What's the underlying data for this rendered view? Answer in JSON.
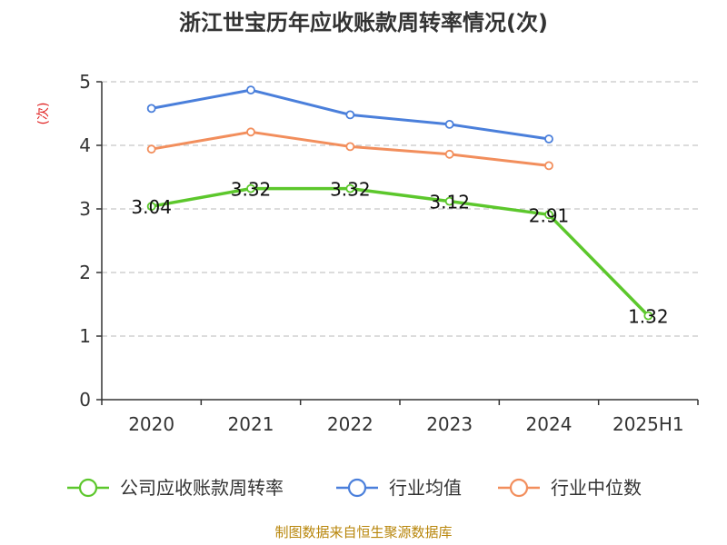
{
  "chart_data": {
    "type": "line",
    "title": "浙江世宝历年应收账款周转率情况(次)",
    "ylabel": "(次)",
    "xlabel": "",
    "categories": [
      "2020",
      "2021",
      "2022",
      "2023",
      "2024",
      "2025H1"
    ],
    "ylim": [
      0,
      5
    ],
    "yticks": [
      0,
      1,
      2,
      3,
      4,
      5
    ],
    "grid": "horizontal-dashed",
    "legend_position": "bottom",
    "series": [
      {
        "name": "公司应收账款周转率",
        "color": "#5cc72c",
        "values": [
          3.04,
          3.32,
          3.32,
          3.12,
          2.91,
          1.32
        ],
        "labels": [
          "3.04",
          "3.32",
          "3.32",
          "3.12",
          "2.91",
          "1.32"
        ],
        "show_labels": true
      },
      {
        "name": "行业均值",
        "color": "#4a7fdb",
        "values": [
          4.58,
          4.87,
          4.48,
          4.33,
          4.1,
          null
        ],
        "show_labels": false
      },
      {
        "name": "行业中位数",
        "color": "#f28e5c",
        "values": [
          3.94,
          4.21,
          3.98,
          3.86,
          3.68,
          null
        ],
        "show_labels": false
      }
    ],
    "source": "制图数据来自恒生聚源数据库"
  }
}
